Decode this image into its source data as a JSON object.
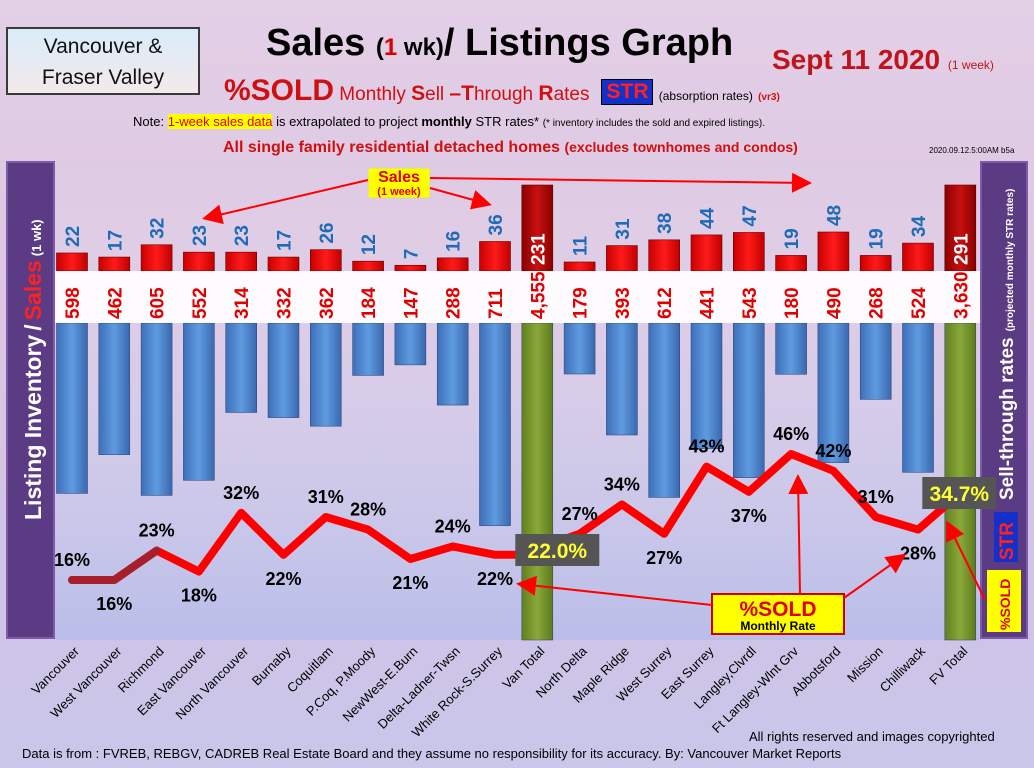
{
  "header": {
    "region_line1": "Vancouver &",
    "region_line2": "Fraser Valley",
    "title_part1": "Sales",
    "title_open": "(",
    "title_num": "1",
    "title_wk": " wk)",
    "title_part2": "/ Listings Graph",
    "date": "Sept 11  2020",
    "date_suffix": "(1 week)",
    "subtitle_sold": "%SOLD",
    "subtitle_w1_cap": "S",
    "subtitle_w1_rest": "ell",
    "subtitle_w2_cap": "T",
    "subtitle_w2_rest": "hrough",
    "subtitle_w3_cap": "R",
    "subtitle_w3_rest": "ates",
    "subtitle_monthly": "Monthly ",
    "subtitle_dash": "–",
    "str_badge": "STR",
    "subtitle_absorption": "(absorption rates)",
    "subtitle_ver": "(vr3)",
    "note_prefix": "Note: ",
    "note_highlight": "1-week sales data",
    "note_mid": " is extrapolated to project ",
    "note_bold": "monthly",
    "note_end": " STR rates*",
    "note_small": "(* inventory includes the sold and expired listings).",
    "subhead_main": "All single family residential detached homes",
    "subhead_small": "(excludes townhomes and condos)",
    "stamp": "2020.09.12.5:00AM b5a"
  },
  "side": {
    "left_inventory": "Listing Inventory",
    "left_slash": "/",
    "left_sales": "Sales",
    "left_wk": "(1 wk)",
    "right_main": "Sell-through rates",
    "right_small": "(projected monthly STR rates)",
    "right_str": "STR",
    "right_sold": "%SOLD"
  },
  "annotations": {
    "sales_label": "Sales",
    "sales_sub": "(1 week)",
    "sold_label": "%SOLD",
    "sold_sub": "Monthly Rate",
    "van_total_pct": "22.0%",
    "fv_total_pct": "34.7%"
  },
  "footer": {
    "rights": "All rights reserved and  images copyrighted",
    "source": "Data is from : FVREB, REBGV, CADREB Real Estate Board and they assume no responsibility for its accuracy. By: Vancouver Market Reports"
  },
  "colors": {
    "sales_bar": "#e80000",
    "inventory_bar": "#4f86d0",
    "total_sales_bar": "#b00000",
    "total_inventory_bar": "#7a9a2e",
    "str_line": "#ff0000",
    "sales_label_color": "#1e6bb8",
    "inventory_label_color": "#e00000"
  },
  "chart_data": {
    "type": "bar",
    "categories": [
      "Vancouver",
      "West Vancouver",
      "Richmond",
      "East Vancouver",
      "North Vancouver",
      "Burnaby",
      "Coquitlam",
      "P.Coq, P.Moody",
      "NewWest-E.Burn",
      "Delta-Ladner-Twsn",
      "White Rock-S.Surrey",
      "Van Total",
      "North Delta",
      "Maple Ridge",
      "West Surrey",
      "East Surrey",
      "Langley,Clvrdl",
      "Ft Langley-Wlnt Grv",
      "Abbotsford",
      "Mission",
      "Chilliwack",
      "FV Total"
    ],
    "series": [
      {
        "name": "Sales",
        "values": [
          22,
          17,
          32,
          23,
          23,
          17,
          26,
          12,
          7,
          16,
          36,
          231,
          11,
          31,
          38,
          44,
          47,
          19,
          48,
          19,
          34,
          291
        ],
        "labels": [
          "22",
          "17",
          "32",
          "23",
          "23",
          "17",
          "26",
          "12",
          "7",
          "16",
          "36",
          "231",
          "11",
          "31",
          "38",
          "44",
          "47",
          "19",
          "48",
          "19",
          "34",
          "291"
        ]
      },
      {
        "name": "Listing Inventory",
        "values": [
          598,
          462,
          605,
          552,
          314,
          332,
          362,
          184,
          147,
          288,
          711,
          4555,
          179,
          393,
          612,
          441,
          543,
          180,
          490,
          268,
          524,
          3630
        ],
        "labels": [
          "598",
          "462",
          "605",
          "552",
          "314",
          "332",
          "362",
          "184",
          "147",
          "288",
          "711",
          "4,555",
          "179",
          "393",
          "612",
          "441",
          "543",
          "180",
          "490",
          "268",
          "524",
          "3,630"
        ]
      },
      {
        "name": "%SOLD",
        "values": [
          16,
          16,
          23,
          18,
          32,
          22,
          31,
          28,
          21,
          24,
          22,
          22.0,
          27,
          34,
          27,
          43,
          37,
          46,
          42,
          31,
          28,
          34.7
        ],
        "labels": [
          "16%",
          "16%",
          "23%",
          "18%",
          "32%",
          "22%",
          "31%",
          "28%",
          "21%",
          "24%",
          "22%",
          "22.0%",
          "27%",
          "34%",
          "27%",
          "43%",
          "37%",
          "46%",
          "42%",
          "31%",
          "28%",
          "34.7%"
        ]
      }
    ],
    "title": "Sales (1 wk)/ Listings Graph",
    "ylabel": "Listing Inventory / Sales (1 wk)",
    "y2label": "Sell-through rates (projected monthly STR rates)",
    "legend": "none",
    "grid": false
  }
}
